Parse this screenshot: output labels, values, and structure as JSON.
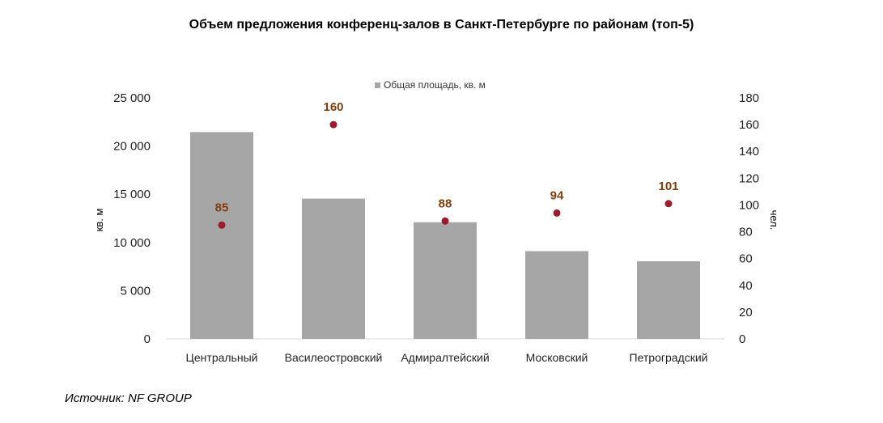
{
  "chart_data": {
    "type": "bar",
    "title": "Объем предложения конференц-залов в Санкт-Петербурге по районам (топ-5)",
    "categories": [
      "Центральный",
      "Василеостровский",
      "Адмиралтейский",
      "Московский",
      "Петроградский"
    ],
    "series": [
      {
        "name": "Общая площадь, кв. м",
        "type": "bar",
        "axis": "left",
        "color": "#a6a6a6",
        "values": [
          21450,
          14550,
          12100,
          9100,
          8050
        ]
      },
      {
        "name": "чел.",
        "type": "scatter",
        "axis": "right",
        "color": "#9b1c2c",
        "label_color": "#843c0c",
        "values": [
          85,
          160,
          88,
          94,
          101
        ]
      }
    ],
    "ylabel": "кв. м",
    "y2label": "чел.",
    "ylim": [
      0,
      25000
    ],
    "y2lim": [
      0,
      180
    ],
    "yticks": [
      "0",
      "5 000",
      "10 000",
      "15 000",
      "20 000",
      "25 000"
    ],
    "ytick_values": [
      0,
      5000,
      10000,
      15000,
      20000,
      25000
    ],
    "y2ticks": [
      0,
      20,
      40,
      60,
      80,
      100,
      120,
      140,
      160,
      180
    ],
    "legend": {
      "position": "top",
      "entries": [
        "Общая площадь, кв. м"
      ]
    },
    "grid": false
  },
  "source": "Источник: NF GROUP"
}
